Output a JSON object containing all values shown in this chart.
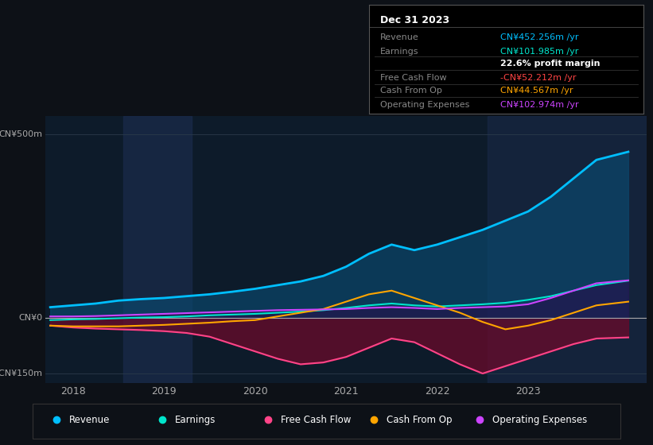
{
  "bg_color": "#0d1117",
  "plot_bg_color": "#0d1b2a",
  "ylabel_500": "CN¥500m",
  "ylabel_0": "CN¥0",
  "ylabel_neg150": "-CN¥150m",
  "ylim": [
    -175,
    550
  ],
  "xlim": [
    2017.7,
    2024.3
  ],
  "xticks": [
    2018,
    2019,
    2020,
    2021,
    2022,
    2023
  ],
  "grid_color": "#2a3a4a",
  "info_box": {
    "title": "Dec 31 2023",
    "rows": [
      {
        "label": "Revenue",
        "value": "CN¥452.256m /yr",
        "color": "#00bfff"
      },
      {
        "label": "Earnings",
        "value": "CN¥101.985m /yr",
        "color": "#00e5cc"
      },
      {
        "label": "",
        "value": "22.6% profit margin",
        "color": "#ffffff"
      },
      {
        "label": "Free Cash Flow",
        "value": "-CN¥52.212m /yr",
        "color": "#ff4444"
      },
      {
        "label": "Cash From Op",
        "value": "CN¥44.567m /yr",
        "color": "#ffa500"
      },
      {
        "label": "Operating Expenses",
        "value": "CN¥102.974m /yr",
        "color": "#cc44ff"
      }
    ]
  },
  "legend": [
    {
      "label": "Revenue",
      "color": "#00bfff"
    },
    {
      "label": "Earnings",
      "color": "#00e5cc"
    },
    {
      "label": "Free Cash Flow",
      "color": "#ff4488"
    },
    {
      "label": "Cash From Op",
      "color": "#ffa500"
    },
    {
      "label": "Operating Expenses",
      "color": "#cc44ff"
    }
  ],
  "revenue_x": [
    2017.75,
    2018.0,
    2018.25,
    2018.5,
    2018.75,
    2019.0,
    2019.25,
    2019.5,
    2019.75,
    2020.0,
    2020.25,
    2020.5,
    2020.75,
    2021.0,
    2021.25,
    2021.5,
    2021.75,
    2022.0,
    2022.25,
    2022.5,
    2022.75,
    2023.0,
    2023.25,
    2023.5,
    2023.75,
    2024.1
  ],
  "revenue_y": [
    30,
    35,
    40,
    48,
    52,
    55,
    60,
    65,
    72,
    80,
    90,
    100,
    115,
    140,
    175,
    200,
    185,
    200,
    220,
    240,
    265,
    290,
    330,
    380,
    430,
    452
  ],
  "revenue_color": "#00bfff",
  "revenue_fill": "#0a4a70",
  "earnings_x": [
    2017.75,
    2018.0,
    2018.25,
    2018.5,
    2018.75,
    2019.0,
    2019.25,
    2019.5,
    2019.75,
    2020.0,
    2020.25,
    2020.5,
    2020.75,
    2021.0,
    2021.25,
    2021.5,
    2021.75,
    2022.0,
    2022.25,
    2022.5,
    2022.75,
    2023.0,
    2023.25,
    2023.5,
    2023.75,
    2024.1
  ],
  "earnings_y": [
    -5,
    -3,
    -2,
    0,
    2,
    3,
    5,
    8,
    10,
    12,
    15,
    18,
    22,
    28,
    35,
    40,
    35,
    32,
    35,
    38,
    42,
    50,
    60,
    75,
    90,
    102
  ],
  "earnings_color": "#00e5cc",
  "fcf_x": [
    2017.75,
    2018.0,
    2018.25,
    2018.5,
    2018.75,
    2019.0,
    2019.25,
    2019.5,
    2019.75,
    2020.0,
    2020.25,
    2020.5,
    2020.75,
    2021.0,
    2021.25,
    2021.5,
    2021.75,
    2022.0,
    2022.25,
    2022.5,
    2022.75,
    2023.0,
    2023.25,
    2023.5,
    2023.75,
    2024.1
  ],
  "fcf_y": [
    -20,
    -25,
    -28,
    -30,
    -32,
    -35,
    -40,
    -50,
    -70,
    -90,
    -110,
    -125,
    -120,
    -105,
    -80,
    -55,
    -65,
    -95,
    -125,
    -150,
    -130,
    -110,
    -90,
    -70,
    -55,
    -52
  ],
  "fcf_color": "#ff4488",
  "fcf_fill": "#6a0a2a",
  "cfo_x": [
    2017.75,
    2018.0,
    2018.25,
    2018.5,
    2018.75,
    2019.0,
    2019.25,
    2019.5,
    2019.75,
    2020.0,
    2020.25,
    2020.5,
    2020.75,
    2021.0,
    2021.25,
    2021.5,
    2021.75,
    2022.0,
    2022.25,
    2022.5,
    2022.75,
    2023.0,
    2023.25,
    2023.5,
    2023.75,
    2024.1
  ],
  "cfo_y": [
    -20,
    -22,
    -22,
    -22,
    -20,
    -18,
    -15,
    -12,
    -8,
    -5,
    5,
    15,
    25,
    45,
    65,
    75,
    55,
    35,
    15,
    -10,
    -30,
    -20,
    -5,
    15,
    35,
    45
  ],
  "cfo_color": "#ffa500",
  "opex_x": [
    2017.75,
    2018.0,
    2018.25,
    2018.5,
    2018.75,
    2019.0,
    2019.25,
    2019.5,
    2019.75,
    2020.0,
    2020.25,
    2020.5,
    2020.75,
    2021.0,
    2021.25,
    2021.5,
    2021.75,
    2022.0,
    2022.25,
    2022.5,
    2022.75,
    2023.0,
    2023.25,
    2023.5,
    2023.75,
    2024.1
  ],
  "opex_y": [
    5,
    5,
    6,
    8,
    10,
    12,
    14,
    16,
    18,
    20,
    22,
    23,
    24,
    25,
    28,
    30,
    28,
    25,
    28,
    30,
    32,
    38,
    55,
    75,
    95,
    103
  ],
  "opex_color": "#cc44ff",
  "opex_fill": "#2a0a4a"
}
